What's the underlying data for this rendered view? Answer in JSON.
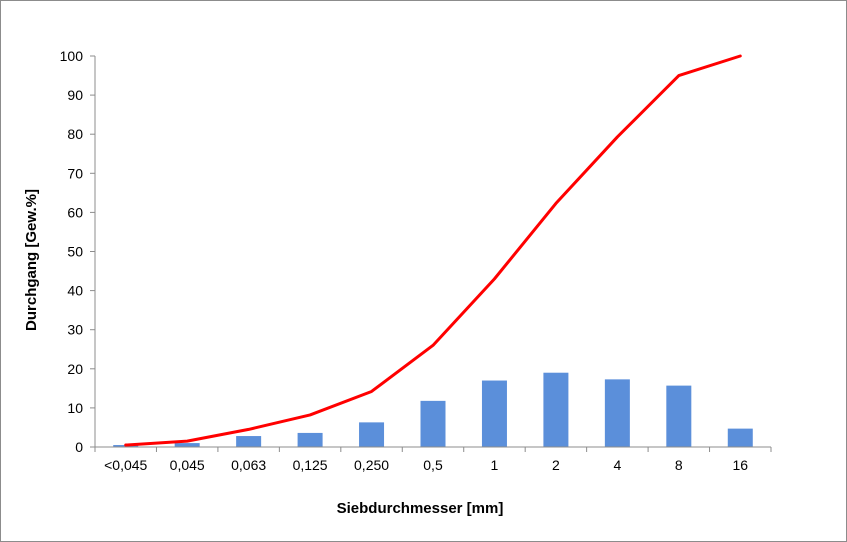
{
  "chart_data": {
    "type": "bar",
    "categories": [
      "<0,045",
      "0,045",
      "0,063",
      "0,125",
      "0,250",
      "0,5",
      "1",
      "2",
      "4",
      "8",
      "16"
    ],
    "series": [
      {
        "type": "bar",
        "values": [
          0.5,
          1.0,
          2.8,
          3.6,
          6.3,
          11.8,
          17.0,
          19.0,
          17.3,
          15.7,
          4.7
        ]
      },
      {
        "type": "line",
        "values": [
          0.5,
          1.5,
          4.5,
          8.2,
          14.2,
          26.0,
          43.0,
          62.3,
          79.3,
          95.0,
          100.0
        ]
      }
    ],
    "title": "",
    "xlabel": "Siebdurchmesser [mm]",
    "ylabel": "Durchgang  [Gew.%]",
    "ylim": [
      0,
      100
    ],
    "yticks": [
      "0",
      "10",
      "20",
      "30",
      "40",
      "50",
      "60",
      "70",
      "80",
      "90",
      "100"
    ],
    "grid": false,
    "legend": "none",
    "colors": {
      "bar": "#5B8FDA",
      "line": "#FF0000",
      "axis": "#8c8c8c",
      "text": "#000000"
    }
  }
}
